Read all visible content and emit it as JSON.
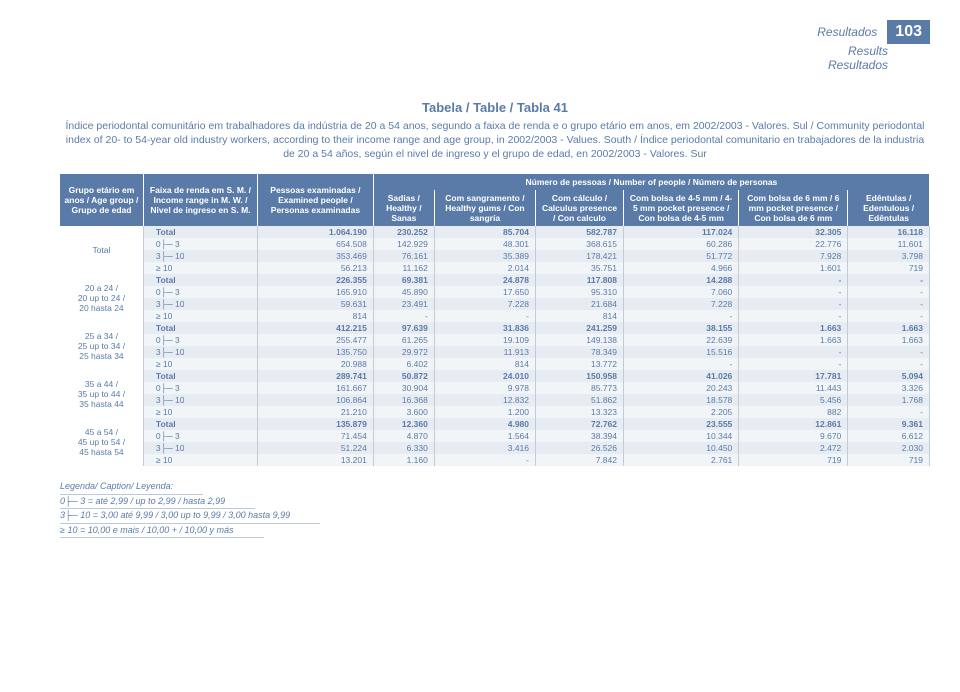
{
  "hdr": {
    "r1": "Resultados",
    "r2": "Results",
    "r3": "Resultados",
    "pg": "103"
  },
  "title": "Tabela / Table / Tabla 41",
  "sub": "Índice periodontal comunitário em trabalhadores da indústria de 20 a 54 anos, segundo a faixa de renda e o grupo etário em anos, em 2002/2003 - Valores. Sul / Community periodontal index of 20- to 54-year old industry workers, according to their income range and age group, in 2002/2003 - Values. South / Índice periodontal comunitario en trabajadores de la industria de 20 a 54 años, según el nivel de ingreso y el grupo de edad, en 2002/2003 - Valores. Sur",
  "cols": {
    "c1": "Grupo etário em anos / Age group / Grupo de edad",
    "c2": "Faixa de renda em S. M. / Income range in M. W. / Nivel de ingreso en S. M.",
    "c3": "Pessoas examinadas / Examined people / Personas examinadas",
    "span": "Número de pessoas / Number of people / Número de personas",
    "c4": "Sadias / Healthy / Sanas",
    "c5": "Com sangramento / Healthy gums / Con sangría",
    "c6": "Com cálculo / Calculus presence / Con calculo",
    "c7": "Com bolsa de 4-5 mm / 4-5 mm pocket presence / Con bolsa de 4-5 mm",
    "c8": "Com bolsa de 6 mm / 6 mm pocket presence / Con bolsa de 6 mm",
    "c9": "Edêntulas / Edentulous / Edêntulas"
  },
  "groups": [
    {
      "lbl": "Total",
      "rows": [
        [
          "Total",
          "1.064.190",
          "230.252",
          "85.704",
          "582.787",
          "117.024",
          "32.305",
          "16.118"
        ],
        [
          "0├─ 3",
          "654.508",
          "142.929",
          "48.301",
          "368.615",
          "60.286",
          "22.776",
          "11.601"
        ],
        [
          "3├─ 10",
          "353.469",
          "76.161",
          "35.389",
          "178.421",
          "51.772",
          "7.928",
          "3.798"
        ],
        [
          "≥ 10",
          "56.213",
          "11.162",
          "2.014",
          "35.751",
          "4.966",
          "1.601",
          "719"
        ]
      ]
    },
    {
      "lbl": "20 a 24 / 20 up to 24 / 20 hasta 24",
      "rows": [
        [
          "Total",
          "226.355",
          "69.381",
          "24.878",
          "117.808",
          "14.288",
          "-",
          "-"
        ],
        [
          "0├─ 3",
          "165.910",
          "45.890",
          "17.650",
          "95.310",
          "7.060",
          "-",
          "-"
        ],
        [
          "3├─ 10",
          "59.631",
          "23.491",
          "7.228",
          "21.684",
          "7.228",
          "-",
          "-"
        ],
        [
          "≥ 10",
          "814",
          "-",
          "-",
          "814",
          "-",
          "-",
          "-"
        ]
      ]
    },
    {
      "lbl": "25 a 34 / 25 up to 34 / 25 hasta 34",
      "rows": [
        [
          "Total",
          "412.215",
          "97.639",
          "31.836",
          "241.259",
          "38.155",
          "1.663",
          "1.663"
        ],
        [
          "0├─ 3",
          "255.477",
          "61.265",
          "19.109",
          "149.138",
          "22.639",
          "1.663",
          "1.663"
        ],
        [
          "3├─ 10",
          "135.750",
          "29.972",
          "11.913",
          "78.349",
          "15.516",
          "-",
          "-"
        ],
        [
          "≥ 10",
          "20.988",
          "6.402",
          "814",
          "13.772",
          "-",
          "-",
          "-"
        ]
      ]
    },
    {
      "lbl": "35 a 44 / 35 up to 44 / 35 hasta 44",
      "rows": [
        [
          "Total",
          "289.741",
          "50.872",
          "24.010",
          "150.958",
          "41.026",
          "17.781",
          "5.094"
        ],
        [
          "0├─ 3",
          "161.667",
          "30.904",
          "9.978",
          "85.773",
          "20.243",
          "11.443",
          "3.326"
        ],
        [
          "3├─ 10",
          "106.864",
          "16.368",
          "12.832",
          "51.862",
          "18.578",
          "5.456",
          "1.768"
        ],
        [
          "≥ 10",
          "21.210",
          "3.600",
          "1.200",
          "13.323",
          "2.205",
          "882",
          "-"
        ]
      ]
    },
    {
      "lbl": "45 a 54 / 45 up to 54 / 45 hasta 54",
      "rows": [
        [
          "Total",
          "135.879",
          "12.360",
          "4.980",
          "72.762",
          "23.555",
          "12.861",
          "9.361"
        ],
        [
          "0├─ 3",
          "71.454",
          "4.870",
          "1.564",
          "38.394",
          "10.344",
          "9.670",
          "6.612"
        ],
        [
          "3├─ 10",
          "51.224",
          "6.330",
          "3.416",
          "26.526",
          "10.450",
          "2.472",
          "2.030"
        ],
        [
          "≥ 10",
          "13.201",
          "1.160",
          "-",
          "7.842",
          "2.761",
          "719",
          "719"
        ]
      ]
    }
  ],
  "legend": {
    "t": "Legenda/ Caption/ Leyenda:",
    "l1": "0├─ 3 = até 2,99 / up to 2,99 / hasta 2,99",
    "l2": "3├─ 10 = 3,00 até 9,99 / 3,00 up to 9,99 / 3,00 hasta 9,99",
    "l3": "≥ 10 = 10,00 e mais / 10,00 + / 10,00 y más"
  }
}
